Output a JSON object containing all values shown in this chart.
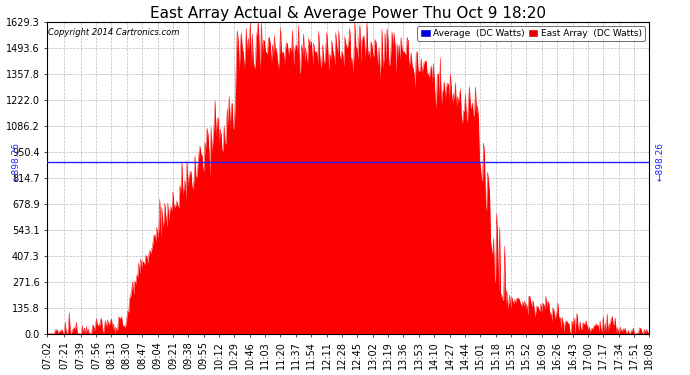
{
  "title": "East Array Actual & Average Power Thu Oct 9 18:20",
  "copyright": "Copyright 2014 Cartronics.com",
  "yticks": [
    0.0,
    135.8,
    271.6,
    407.3,
    543.1,
    678.9,
    814.7,
    950.4,
    1086.2,
    1222.0,
    1357.8,
    1493.6,
    1629.3
  ],
  "ymax": 1629.3,
  "ymin": 0.0,
  "average_line": 898.26,
  "legend_avg_color": "#0000dd",
  "legend_east_color": "#dd0000",
  "fill_color": "#ff0000",
  "avg_line_color": "#2222ff",
  "background_color": "#ffffff",
  "plot_bg_color": "#ffffff",
  "grid_color": "#bbbbbb",
  "title_fontsize": 11,
  "tick_fontsize": 7,
  "time_labels": [
    "07:02",
    "07:21",
    "07:39",
    "07:56",
    "08:13",
    "08:30",
    "08:47",
    "09:04",
    "09:21",
    "09:38",
    "09:55",
    "10:12",
    "10:29",
    "10:46",
    "11:03",
    "11:20",
    "11:37",
    "11:54",
    "12:11",
    "12:28",
    "12:45",
    "13:02",
    "13:19",
    "13:36",
    "13:53",
    "14:10",
    "14:27",
    "14:44",
    "15:01",
    "15:18",
    "15:35",
    "15:52",
    "16:09",
    "16:26",
    "16:43",
    "17:00",
    "17:17",
    "17:34",
    "17:51",
    "18:08"
  ]
}
